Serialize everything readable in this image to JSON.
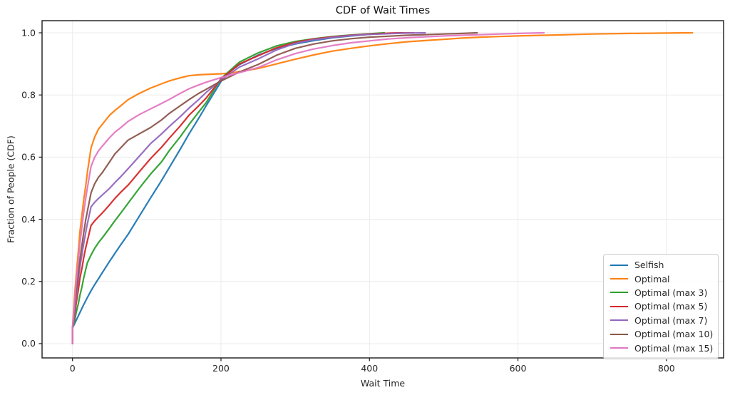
{
  "style": {
    "background": "#ffffff",
    "grid_color": "#ebebeb",
    "spine_color": "#1a1a1a",
    "tick_color": "#1a1a1a",
    "text_color": "#262626",
    "legend_border": "#cccccc"
  },
  "chart_data": {
    "type": "line",
    "title": "CDF of Wait Times",
    "xlabel": "Wait Time",
    "ylabel": "Fraction of People (CDF)",
    "xlim": [
      -41,
      877
    ],
    "ylim": [
      -0.046,
      1.039
    ],
    "xticks": [
      0,
      200,
      400,
      600,
      800
    ],
    "xtick_labels": [
      "0",
      "200",
      "400",
      "600",
      "800"
    ],
    "yticks": [
      0.0,
      0.2,
      0.4,
      0.6,
      0.8,
      1.0
    ],
    "ytick_labels": [
      "0.0",
      "0.2",
      "0.4",
      "0.6",
      "0.8",
      "1.0"
    ],
    "grid": true,
    "legend_position": "lower right",
    "series": [
      {
        "name": "Selfish",
        "color": "#1f77b4",
        "points": [
          [
            0,
            0
          ],
          [
            0,
            0.05
          ],
          [
            5,
            0.075
          ],
          [
            10,
            0.1
          ],
          [
            15,
            0.125
          ],
          [
            20,
            0.148
          ],
          [
            25,
            0.17
          ],
          [
            30,
            0.19
          ],
          [
            40,
            0.228
          ],
          [
            50,
            0.265
          ],
          [
            57,
            0.29
          ],
          [
            65,
            0.318
          ],
          [
            75,
            0.352
          ],
          [
            90,
            0.41
          ],
          [
            105,
            0.468
          ],
          [
            120,
            0.525
          ],
          [
            130,
            0.565
          ],
          [
            145,
            0.625
          ],
          [
            157,
            0.675
          ],
          [
            170,
            0.725
          ],
          [
            180,
            0.765
          ],
          [
            200,
            0.843
          ],
          [
            210,
            0.872
          ],
          [
            225,
            0.898
          ],
          [
            250,
            0.928
          ],
          [
            275,
            0.95
          ],
          [
            300,
            0.964
          ],
          [
            325,
            0.975
          ],
          [
            350,
            0.984
          ],
          [
            375,
            0.99
          ],
          [
            400,
            0.995
          ],
          [
            425,
            0.998
          ],
          [
            445,
            1.0
          ]
        ]
      },
      {
        "name": "Optimal",
        "color": "#ff7f0e",
        "points": [
          [
            0,
            0
          ],
          [
            0,
            0.05
          ],
          [
            3,
            0.16
          ],
          [
            5,
            0.22
          ],
          [
            8,
            0.3
          ],
          [
            10,
            0.36
          ],
          [
            13,
            0.42
          ],
          [
            15,
            0.46
          ],
          [
            18,
            0.51
          ],
          [
            20,
            0.55
          ],
          [
            25,
            0.63
          ],
          [
            30,
            0.665
          ],
          [
            35,
            0.69
          ],
          [
            40,
            0.705
          ],
          [
            50,
            0.735
          ],
          [
            57,
            0.75
          ],
          [
            65,
            0.765
          ],
          [
            75,
            0.785
          ],
          [
            90,
            0.805
          ],
          [
            105,
            0.822
          ],
          [
            120,
            0.836
          ],
          [
            130,
            0.845
          ],
          [
            145,
            0.855
          ],
          [
            157,
            0.862
          ],
          [
            170,
            0.865
          ],
          [
            180,
            0.866
          ],
          [
            200,
            0.868
          ],
          [
            215,
            0.871
          ],
          [
            225,
            0.875
          ],
          [
            250,
            0.885
          ],
          [
            275,
            0.9
          ],
          [
            300,
            0.915
          ],
          [
            325,
            0.929
          ],
          [
            350,
            0.941
          ],
          [
            375,
            0.95
          ],
          [
            400,
            0.958
          ],
          [
            425,
            0.965
          ],
          [
            450,
            0.971
          ],
          [
            475,
            0.975
          ],
          [
            500,
            0.979
          ],
          [
            525,
            0.983
          ],
          [
            550,
            0.986
          ],
          [
            575,
            0.988
          ],
          [
            600,
            0.99
          ],
          [
            650,
            0.993
          ],
          [
            700,
            0.996
          ],
          [
            750,
            0.998
          ],
          [
            800,
            0.999
          ],
          [
            835,
            1.0
          ]
        ]
      },
      {
        "name": "Optimal (max 3)",
        "color": "#2ca02c",
        "points": [
          [
            0,
            0
          ],
          [
            0,
            0.05
          ],
          [
            3,
            0.075
          ],
          [
            5,
            0.1
          ],
          [
            8,
            0.13
          ],
          [
            10,
            0.155
          ],
          [
            13,
            0.185
          ],
          [
            15,
            0.21
          ],
          [
            18,
            0.24
          ],
          [
            20,
            0.26
          ],
          [
            25,
            0.285
          ],
          [
            30,
            0.307
          ],
          [
            35,
            0.325
          ],
          [
            40,
            0.34
          ],
          [
            50,
            0.372
          ],
          [
            57,
            0.395
          ],
          [
            65,
            0.42
          ],
          [
            75,
            0.452
          ],
          [
            90,
            0.5
          ],
          [
            105,
            0.545
          ],
          [
            120,
            0.585
          ],
          [
            130,
            0.62
          ],
          [
            145,
            0.665
          ],
          [
            157,
            0.705
          ],
          [
            170,
            0.745
          ],
          [
            180,
            0.775
          ],
          [
            200,
            0.853
          ],
          [
            225,
            0.906
          ],
          [
            250,
            0.935
          ],
          [
            275,
            0.958
          ],
          [
            300,
            0.972
          ],
          [
            325,
            0.981
          ],
          [
            350,
            0.988
          ],
          [
            375,
            0.993
          ],
          [
            400,
            0.997
          ],
          [
            420,
            1.0
          ]
        ]
      },
      {
        "name": "Optimal (max 5)",
        "color": "#d62728",
        "points": [
          [
            0,
            0
          ],
          [
            0,
            0.05
          ],
          [
            3,
            0.09
          ],
          [
            5,
            0.13
          ],
          [
            8,
            0.175
          ],
          [
            10,
            0.21
          ],
          [
            13,
            0.245
          ],
          [
            15,
            0.275
          ],
          [
            18,
            0.31
          ],
          [
            20,
            0.33
          ],
          [
            25,
            0.38
          ],
          [
            30,
            0.395
          ],
          [
            35,
            0.408
          ],
          [
            40,
            0.42
          ],
          [
            50,
            0.447
          ],
          [
            57,
            0.467
          ],
          [
            65,
            0.487
          ],
          [
            75,
            0.51
          ],
          [
            90,
            0.553
          ],
          [
            105,
            0.595
          ],
          [
            120,
            0.632
          ],
          [
            130,
            0.66
          ],
          [
            145,
            0.7
          ],
          [
            157,
            0.735
          ],
          [
            170,
            0.765
          ],
          [
            180,
            0.79
          ],
          [
            200,
            0.851
          ],
          [
            225,
            0.9
          ],
          [
            250,
            0.926
          ],
          [
            275,
            0.952
          ],
          [
            300,
            0.969
          ],
          [
            325,
            0.98
          ],
          [
            350,
            0.987
          ],
          [
            375,
            0.992
          ],
          [
            400,
            0.996
          ],
          [
            430,
            0.999
          ],
          [
            460,
            1.0
          ]
        ]
      },
      {
        "name": "Optimal (max 7)",
        "color": "#9467bd",
        "points": [
          [
            0,
            0
          ],
          [
            0,
            0.05
          ],
          [
            3,
            0.1
          ],
          [
            5,
            0.15
          ],
          [
            8,
            0.21
          ],
          [
            10,
            0.245
          ],
          [
            13,
            0.29
          ],
          [
            15,
            0.32
          ],
          [
            18,
            0.36
          ],
          [
            20,
            0.385
          ],
          [
            25,
            0.44
          ],
          [
            30,
            0.455
          ],
          [
            35,
            0.467
          ],
          [
            40,
            0.478
          ],
          [
            50,
            0.5
          ],
          [
            57,
            0.518
          ],
          [
            65,
            0.537
          ],
          [
            75,
            0.563
          ],
          [
            90,
            0.603
          ],
          [
            105,
            0.643
          ],
          [
            120,
            0.675
          ],
          [
            130,
            0.698
          ],
          [
            145,
            0.73
          ],
          [
            157,
            0.758
          ],
          [
            170,
            0.785
          ],
          [
            180,
            0.808
          ],
          [
            200,
            0.848
          ],
          [
            225,
            0.89
          ],
          [
            250,
            0.916
          ],
          [
            275,
            0.945
          ],
          [
            300,
            0.966
          ],
          [
            325,
            0.978
          ],
          [
            350,
            0.985
          ],
          [
            375,
            0.991
          ],
          [
            400,
            0.995
          ],
          [
            425,
            0.997
          ],
          [
            450,
            0.999
          ],
          [
            475,
            1.0
          ]
        ]
      },
      {
        "name": "Optimal (max 10)",
        "color": "#8c564b",
        "points": [
          [
            0,
            0
          ],
          [
            0,
            0.05
          ],
          [
            3,
            0.12
          ],
          [
            5,
            0.17
          ],
          [
            8,
            0.23
          ],
          [
            10,
            0.27
          ],
          [
            13,
            0.32
          ],
          [
            15,
            0.355
          ],
          [
            18,
            0.4
          ],
          [
            20,
            0.425
          ],
          [
            25,
            0.485
          ],
          [
            30,
            0.515
          ],
          [
            35,
            0.535
          ],
          [
            40,
            0.55
          ],
          [
            50,
            0.585
          ],
          [
            57,
            0.61
          ],
          [
            65,
            0.63
          ],
          [
            75,
            0.655
          ],
          [
            90,
            0.675
          ],
          [
            105,
            0.695
          ],
          [
            120,
            0.72
          ],
          [
            130,
            0.74
          ],
          [
            145,
            0.765
          ],
          [
            157,
            0.785
          ],
          [
            170,
            0.805
          ],
          [
            180,
            0.818
          ],
          [
            200,
            0.845
          ],
          [
            225,
            0.874
          ],
          [
            250,
            0.898
          ],
          [
            275,
            0.928
          ],
          [
            300,
            0.95
          ],
          [
            325,
            0.964
          ],
          [
            350,
            0.974
          ],
          [
            375,
            0.981
          ],
          [
            400,
            0.986
          ],
          [
            425,
            0.989
          ],
          [
            450,
            0.992
          ],
          [
            475,
            0.994
          ],
          [
            500,
            0.996
          ],
          [
            525,
            0.998
          ],
          [
            545,
            1.0
          ]
        ]
      },
      {
        "name": "Optimal (max 15)",
        "color": "#e377c2",
        "points": [
          [
            0,
            0
          ],
          [
            0,
            0.05
          ],
          [
            3,
            0.14
          ],
          [
            5,
            0.2
          ],
          [
            8,
            0.27
          ],
          [
            10,
            0.32
          ],
          [
            13,
            0.38
          ],
          [
            15,
            0.42
          ],
          [
            18,
            0.47
          ],
          [
            20,
            0.5
          ],
          [
            25,
            0.57
          ],
          [
            30,
            0.6
          ],
          [
            35,
            0.62
          ],
          [
            40,
            0.635
          ],
          [
            50,
            0.663
          ],
          [
            57,
            0.68
          ],
          [
            65,
            0.695
          ],
          [
            75,
            0.715
          ],
          [
            90,
            0.737
          ],
          [
            105,
            0.755
          ],
          [
            120,
            0.773
          ],
          [
            130,
            0.785
          ],
          [
            145,
            0.805
          ],
          [
            157,
            0.82
          ],
          [
            170,
            0.832
          ],
          [
            180,
            0.841
          ],
          [
            200,
            0.856
          ],
          [
            225,
            0.872
          ],
          [
            250,
            0.888
          ],
          [
            275,
            0.913
          ],
          [
            300,
            0.933
          ],
          [
            325,
            0.948
          ],
          [
            350,
            0.959
          ],
          [
            375,
            0.968
          ],
          [
            400,
            0.974
          ],
          [
            425,
            0.98
          ],
          [
            450,
            0.984
          ],
          [
            475,
            0.987
          ],
          [
            500,
            0.99
          ],
          [
            525,
            0.992
          ],
          [
            550,
            0.994
          ],
          [
            575,
            0.996
          ],
          [
            600,
            0.998
          ],
          [
            620,
            0.999
          ],
          [
            635,
            1.0
          ]
        ]
      }
    ]
  }
}
